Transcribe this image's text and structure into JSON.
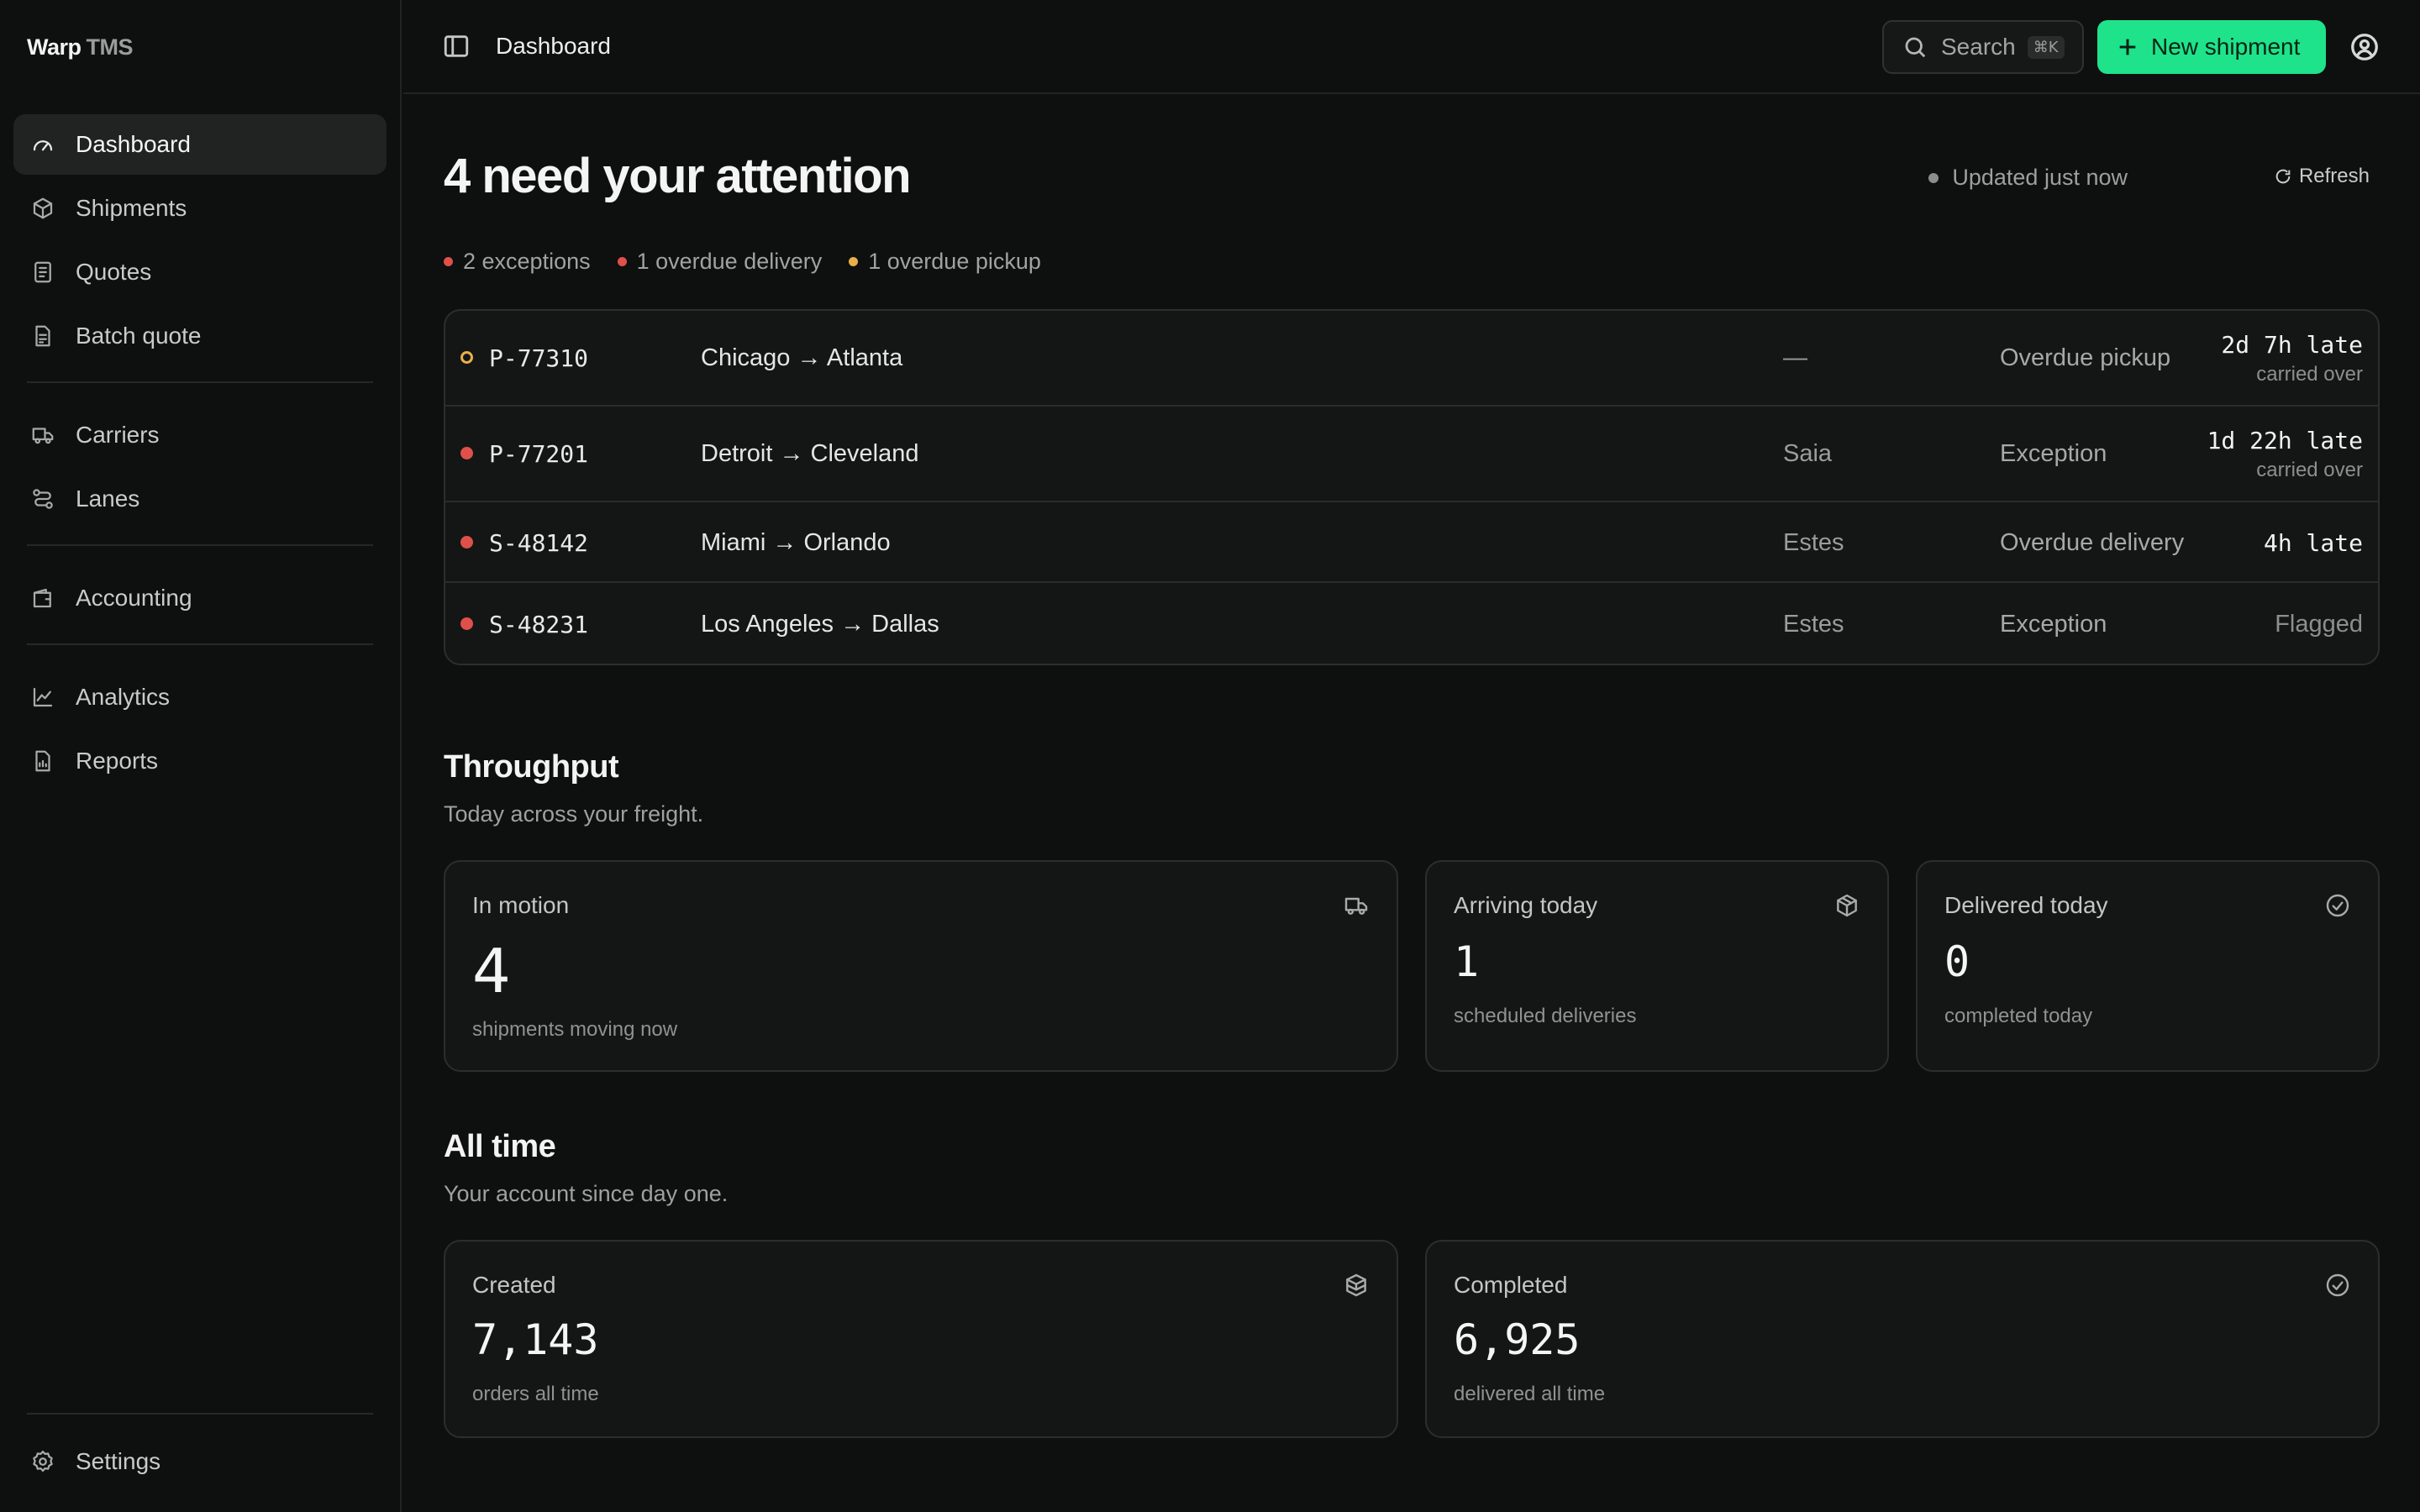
{
  "brand": {
    "name": "Warp",
    "suffix": "TMS"
  },
  "nav": {
    "items": [
      {
        "label": "Dashboard",
        "icon": "gauge-icon",
        "active": true
      },
      {
        "label": "Shipments",
        "icon": "box-icon"
      },
      {
        "label": "Quotes",
        "icon": "receipt-icon"
      },
      {
        "label": "Batch quote",
        "icon": "list-file-icon"
      },
      {
        "label": "Carriers",
        "icon": "truck-icon"
      },
      {
        "label": "Lanes",
        "icon": "route-icon"
      },
      {
        "label": "Accounting",
        "icon": "wallet-icon"
      },
      {
        "label": "Analytics",
        "icon": "line-chart-icon"
      },
      {
        "label": "Reports",
        "icon": "report-file-icon"
      }
    ],
    "settings": "Settings"
  },
  "topbar": {
    "breadcrumb": "Dashboard",
    "search_label": "Search",
    "search_shortcut": "⌘K",
    "new_button": "New shipment"
  },
  "attention": {
    "headline": "4 need your attention",
    "updated": "Updated just now",
    "refresh": "Refresh",
    "summary": [
      {
        "label": "2 exceptions",
        "color": "#e0504a"
      },
      {
        "label": "1 overdue delivery",
        "color": "#e0504a"
      },
      {
        "label": "1 overdue pickup",
        "color": "#e8b04a"
      }
    ],
    "rows": [
      {
        "id": "P-77310",
        "route": "Chicago → Atlanta",
        "carrier": "—",
        "status": "Overdue pickup",
        "late": "2d 7h late",
        "sub": "carried over",
        "dot": "ring"
      },
      {
        "id": "P-77201",
        "route": "Detroit → Cleveland",
        "carrier": "Saia",
        "status": "Exception",
        "late": "1d 22h late",
        "sub": "carried over",
        "dot": "red"
      },
      {
        "id": "S-48142",
        "route": "Miami → Orlando",
        "carrier": "Estes",
        "status": "Overdue delivery",
        "late": "4h late",
        "dot": "red"
      },
      {
        "id": "S-48231",
        "route": "Los Angeles → Dallas",
        "carrier": "Estes",
        "status": "Exception",
        "flag": "Flagged",
        "dot": "red"
      }
    ]
  },
  "throughput": {
    "title": "Throughput",
    "subtitle": "Today across your freight.",
    "cards": [
      {
        "label": "In motion",
        "value": "4",
        "desc": "shipments moving now",
        "icon": "truck-icon"
      },
      {
        "label": "Arriving today",
        "value": "1",
        "desc": "scheduled deliveries",
        "icon": "package-icon"
      },
      {
        "label": "Delivered today",
        "value": "0",
        "desc": "completed today",
        "icon": "check-circle-icon"
      }
    ]
  },
  "alltime": {
    "title": "All time",
    "subtitle": "Your account since day one.",
    "cards": [
      {
        "label": "Created",
        "value": "7,143",
        "desc": "orders all time",
        "icon": "boxes-icon"
      },
      {
        "label": "Completed",
        "value": "6,925",
        "desc": "delivered all time",
        "icon": "check-circle-icon"
      }
    ]
  }
}
